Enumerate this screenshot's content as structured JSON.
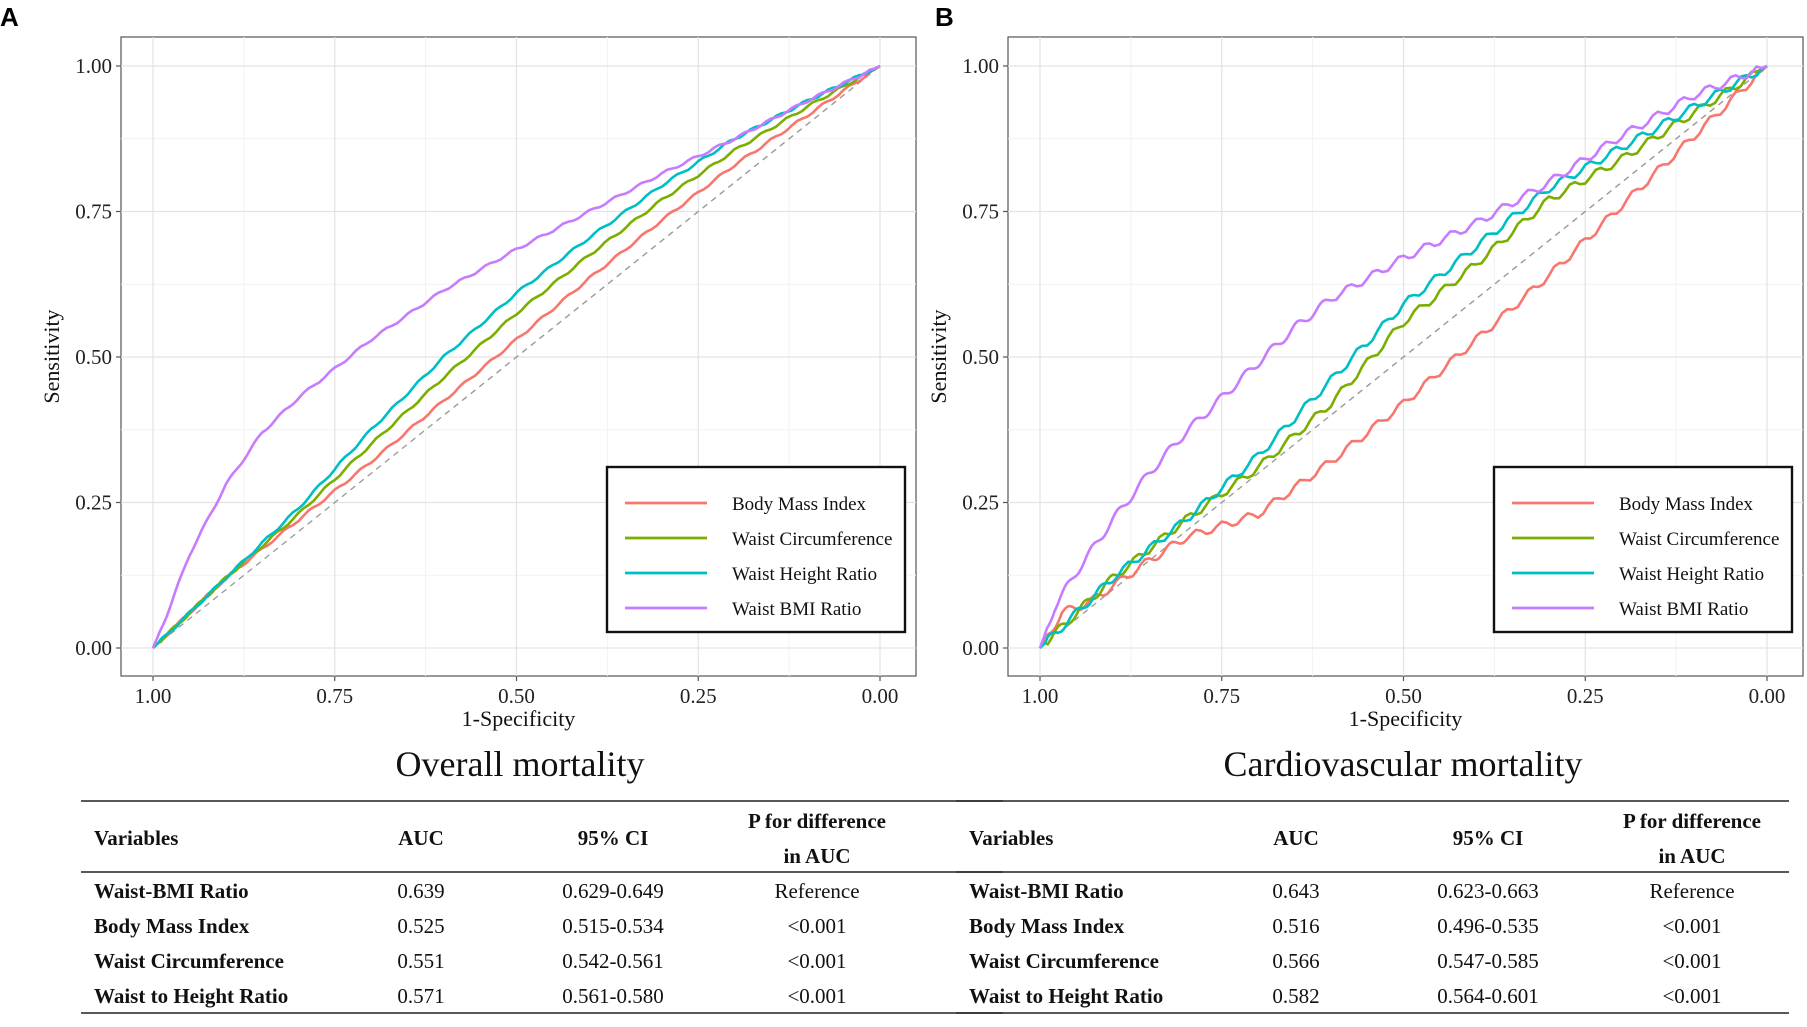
{
  "panels": [
    {
      "letter": "A",
      "title": "Overall mortality",
      "chart_data": {
        "type": "line",
        "subtype": "roc",
        "xlabel": "1-Specificity",
        "ylabel": "Sensitivity",
        "xlim": [
          1.0,
          0.0
        ],
        "ylim": [
          0.0,
          1.0
        ],
        "x_reversed": true,
        "xticks": [
          "1.00",
          "0.75",
          "0.50",
          "0.25",
          "0.00"
        ],
        "yticks": [
          "0.00",
          "0.25",
          "0.50",
          "0.75",
          "1.00"
        ],
        "grid": true,
        "reference_line": "diagonal-dashed",
        "legend_position": "bottom-right",
        "series": [
          {
            "name": "Body Mass Index",
            "color": "#f8766d",
            "points": [
              [
                1.0,
                0.0
              ],
              [
                0.95,
                0.06
              ],
              [
                0.9,
                0.12
              ],
              [
                0.8,
                0.22
              ],
              [
                0.7,
                0.32
              ],
              [
                0.6,
                0.425
              ],
              [
                0.5,
                0.53
              ],
              [
                0.4,
                0.635
              ],
              [
                0.3,
                0.735
              ],
              [
                0.2,
                0.83
              ],
              [
                0.1,
                0.915
              ],
              [
                0.0,
                1.0
              ]
            ]
          },
          {
            "name": "Waist Circumference",
            "color": "#7cae00",
            "points": [
              [
                1.0,
                0.0
              ],
              [
                0.95,
                0.06
              ],
              [
                0.9,
                0.12
              ],
              [
                0.8,
                0.23
              ],
              [
                0.7,
                0.35
              ],
              [
                0.6,
                0.465
              ],
              [
                0.5,
                0.575
              ],
              [
                0.4,
                0.675
              ],
              [
                0.3,
                0.77
              ],
              [
                0.2,
                0.855
              ],
              [
                0.1,
                0.93
              ],
              [
                0.0,
                1.0
              ]
            ]
          },
          {
            "name": "Waist Height Ratio",
            "color": "#00bfc4",
            "points": [
              [
                1.0,
                0.0
              ],
              [
                0.95,
                0.06
              ],
              [
                0.9,
                0.12
              ],
              [
                0.8,
                0.24
              ],
              [
                0.7,
                0.375
              ],
              [
                0.6,
                0.5
              ],
              [
                0.5,
                0.61
              ],
              [
                0.4,
                0.705
              ],
              [
                0.3,
                0.795
              ],
              [
                0.2,
                0.875
              ],
              [
                0.1,
                0.94
              ],
              [
                0.0,
                1.0
              ]
            ]
          },
          {
            "name": "Waist BMI Ratio",
            "color": "#c77cff",
            "points": [
              [
                1.0,
                0.0
              ],
              [
                0.98,
                0.06
              ],
              [
                0.95,
                0.16
              ],
              [
                0.9,
                0.28
              ],
              [
                0.85,
                0.37
              ],
              [
                0.8,
                0.43
              ],
              [
                0.7,
                0.53
              ],
              [
                0.6,
                0.615
              ],
              [
                0.5,
                0.685
              ],
              [
                0.4,
                0.75
              ],
              [
                0.3,
                0.815
              ],
              [
                0.2,
                0.875
              ],
              [
                0.1,
                0.94
              ],
              [
                0.0,
                1.0
              ]
            ]
          }
        ]
      },
      "table": {
        "headers": [
          "Variables",
          "AUC",
          "95% CI",
          "P for difference",
          "in AUC"
        ],
        "rows": [
          [
            "Waist-BMI Ratio",
            "0.639",
            "0.629-0.649",
            "Reference"
          ],
          [
            "Body Mass Index",
            "0.525",
            "0.515-0.534",
            "<0.001"
          ],
          [
            "Waist Circumference",
            "0.551",
            "0.542-0.561",
            "<0.001"
          ],
          [
            "Waist to Height Ratio",
            "0.571",
            "0.561-0.580",
            "<0.001"
          ]
        ]
      }
    },
    {
      "letter": "B",
      "title": "Cardiovascular mortality",
      "chart_data": {
        "type": "line",
        "subtype": "roc",
        "xlabel": "1-Specificity",
        "ylabel": "Sensitivity",
        "xlim": [
          1.0,
          0.0
        ],
        "ylim": [
          0.0,
          1.0
        ],
        "x_reversed": true,
        "xticks": [
          "1.00",
          "0.75",
          "0.50",
          "0.25",
          "0.00"
        ],
        "yticks": [
          "0.00",
          "0.25",
          "0.50",
          "0.75",
          "1.00"
        ],
        "grid": true,
        "reference_line": "diagonal-dashed",
        "legend_position": "bottom-right",
        "series": [
          {
            "name": "Body Mass Index",
            "color": "#f8766d",
            "points": [
              [
                1.0,
                0.0
              ],
              [
                0.97,
                0.06
              ],
              [
                0.93,
                0.08
              ],
              [
                0.85,
                0.15
              ],
              [
                0.8,
                0.19
              ],
              [
                0.7,
                0.23
              ],
              [
                0.6,
                0.32
              ],
              [
                0.5,
                0.42
              ],
              [
                0.4,
                0.53
              ],
              [
                0.3,
                0.64
              ],
              [
                0.2,
                0.76
              ],
              [
                0.1,
                0.88
              ],
              [
                0.0,
                1.0
              ]
            ]
          },
          {
            "name": "Waist Circumference",
            "color": "#7cae00",
            "points": [
              [
                1.0,
                0.0
              ],
              [
                0.95,
                0.06
              ],
              [
                0.9,
                0.12
              ],
              [
                0.8,
                0.22
              ],
              [
                0.7,
                0.31
              ],
              [
                0.6,
                0.42
              ],
              [
                0.5,
                0.56
              ],
              [
                0.4,
                0.66
              ],
              [
                0.3,
                0.77
              ],
              [
                0.2,
                0.84
              ],
              [
                0.1,
                0.92
              ],
              [
                0.0,
                1.0
              ]
            ]
          },
          {
            "name": "Waist Height Ratio",
            "color": "#00bfc4",
            "points": [
              [
                1.0,
                0.0
              ],
              [
                0.95,
                0.06
              ],
              [
                0.9,
                0.12
              ],
              [
                0.8,
                0.22
              ],
              [
                0.7,
                0.33
              ],
              [
                0.6,
                0.46
              ],
              [
                0.5,
                0.59
              ],
              [
                0.4,
                0.69
              ],
              [
                0.3,
                0.79
              ],
              [
                0.2,
                0.86
              ],
              [
                0.1,
                0.93
              ],
              [
                0.0,
                1.0
              ]
            ]
          },
          {
            "name": "Waist BMI Ratio",
            "color": "#c77cff",
            "points": [
              [
                1.0,
                0.0
              ],
              [
                0.98,
                0.07
              ],
              [
                0.95,
                0.13
              ],
              [
                0.9,
                0.22
              ],
              [
                0.85,
                0.3
              ],
              [
                0.8,
                0.37
              ],
              [
                0.75,
                0.43
              ],
              [
                0.7,
                0.49
              ],
              [
                0.65,
                0.55
              ],
              [
                0.6,
                0.6
              ],
              [
                0.5,
                0.67
              ],
              [
                0.4,
                0.73
              ],
              [
                0.3,
                0.8
              ],
              [
                0.2,
                0.88
              ],
              [
                0.1,
                0.95
              ],
              [
                0.0,
                1.0
              ]
            ]
          }
        ]
      },
      "table": {
        "headers": [
          "Variables",
          "AUC",
          "95% CI",
          "P for difference",
          "in AUC"
        ],
        "rows": [
          [
            "Waist-BMI Ratio",
            "0.643",
            "0.623-0.663",
            "Reference"
          ],
          [
            "Body Mass Index",
            "0.516",
            "0.496-0.535",
            "<0.001"
          ],
          [
            "Waist Circumference",
            "0.566",
            "0.547-0.585",
            "<0.001"
          ],
          [
            "Waist to Height Ratio",
            "0.582",
            "0.564-0.601",
            "<0.001"
          ]
        ]
      }
    }
  ]
}
